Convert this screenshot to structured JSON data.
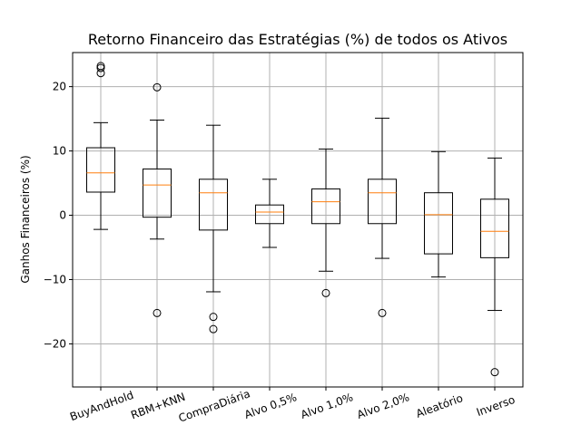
{
  "chart_data": {
    "type": "boxplot",
    "title": "Retorno Financeiro das Estratégias (%) de todos os Ativos",
    "xlabel": "",
    "ylabel": "Ganhos Financeiros (%)",
    "ylim": [
      -26.7,
      25.3
    ],
    "yticks": [
      -20,
      -10,
      0,
      10,
      20
    ],
    "grid": true,
    "categories": [
      "BuyAndHold",
      "RBM+KNN",
      "CompraDiária",
      "Alvo 0,5%",
      "Alvo 1,0%",
      "Alvo 2,0%",
      "Aleatório",
      "Inverso"
    ],
    "boxes": [
      {
        "whislo": -2.2,
        "q1": 3.6,
        "med": 6.6,
        "q3": 10.5,
        "whishi": 14.4,
        "fliers": [
          22.1,
          22.9,
          23.2
        ]
      },
      {
        "whislo": -3.7,
        "q1": -0.3,
        "med": 4.7,
        "q3": 7.2,
        "whishi": 14.8,
        "fliers": [
          19.9,
          -15.2
        ]
      },
      {
        "whislo": -11.9,
        "q1": -2.3,
        "med": 3.5,
        "q3": 5.6,
        "whishi": 14.0,
        "fliers": [
          -15.8,
          -17.7
        ]
      },
      {
        "whislo": -5.0,
        "q1": -1.3,
        "med": 0.5,
        "q3": 1.6,
        "whishi": 5.6,
        "fliers": []
      },
      {
        "whislo": -8.7,
        "q1": -1.3,
        "med": 2.1,
        "q3": 4.1,
        "whishi": 10.3,
        "fliers": [
          -12.1
        ]
      },
      {
        "whislo": -6.7,
        "q1": -1.3,
        "med": 3.5,
        "q3": 5.6,
        "whishi": 15.1,
        "fliers": [
          -15.2
        ]
      },
      {
        "whislo": -9.6,
        "q1": -6.0,
        "med": 0.1,
        "q3": 3.5,
        "whishi": 9.9,
        "fliers": []
      },
      {
        "whislo": -14.8,
        "q1": -6.6,
        "med": -2.5,
        "q3": 2.5,
        "whishi": 8.9,
        "fliers": [
          -24.4
        ]
      }
    ],
    "colors": {
      "box": "#000000",
      "median": "#ff7f0e",
      "grid": "#b0b0b0"
    }
  }
}
